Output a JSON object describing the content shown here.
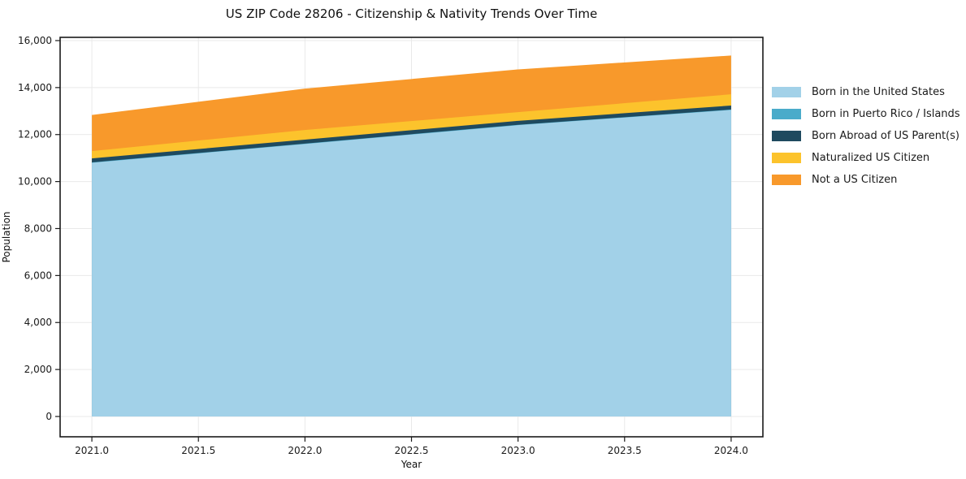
{
  "chart_data": {
    "type": "area",
    "stacked": true,
    "title": "US ZIP Code 28206 - Citizenship & Nativity Trends Over Time",
    "xlabel": "Year",
    "ylabel": "Population",
    "x": [
      2021,
      2022,
      2023,
      2024
    ],
    "series": [
      {
        "name": "Born in the United States",
        "color": "#a2d1e8",
        "values": [
          10800,
          11600,
          12400,
          13050
        ]
      },
      {
        "name": "Born in Puerto Rico / Islands",
        "color": "#4aabca",
        "values": [
          15,
          15,
          15,
          15
        ]
      },
      {
        "name": "Born Abroad of US Parent(s)",
        "color": "#1f4a5f",
        "values": [
          170,
          170,
          170,
          170
        ]
      },
      {
        "name": "Naturalized US Citizen",
        "color": "#fcc32c",
        "values": [
          310,
          410,
          370,
          480
        ]
      },
      {
        "name": "Not a US Citizen",
        "color": "#f8992b",
        "values": [
          1540,
          1760,
          1820,
          1650
        ]
      }
    ],
    "xlim": [
      2020.851,
      2024.149
    ],
    "ylim": [
      -864,
      16138
    ],
    "xticks": {
      "values": [
        2021.0,
        2021.5,
        2022.0,
        2022.5,
        2023.0,
        2023.5,
        2024.0
      ],
      "labels": [
        "2021.0",
        "2021.5",
        "2022.0",
        "2022.5",
        "2023.0",
        "2023.5",
        "2024.0"
      ]
    },
    "yticks": {
      "values": [
        0,
        2000,
        4000,
        6000,
        8000,
        10000,
        12000,
        14000,
        16000
      ],
      "labels": [
        "0",
        "2,000",
        "4,000",
        "6,000",
        "8,000",
        "10,000",
        "12,000",
        "14,000",
        "16,000"
      ]
    },
    "grid": true,
    "legend_position": "right-outside",
    "grid_color": "#e9e9e9",
    "axis_color": "#1a1a1a",
    "tick_label_color": "#1a1a1a",
    "background_color": "#ffffff"
  }
}
